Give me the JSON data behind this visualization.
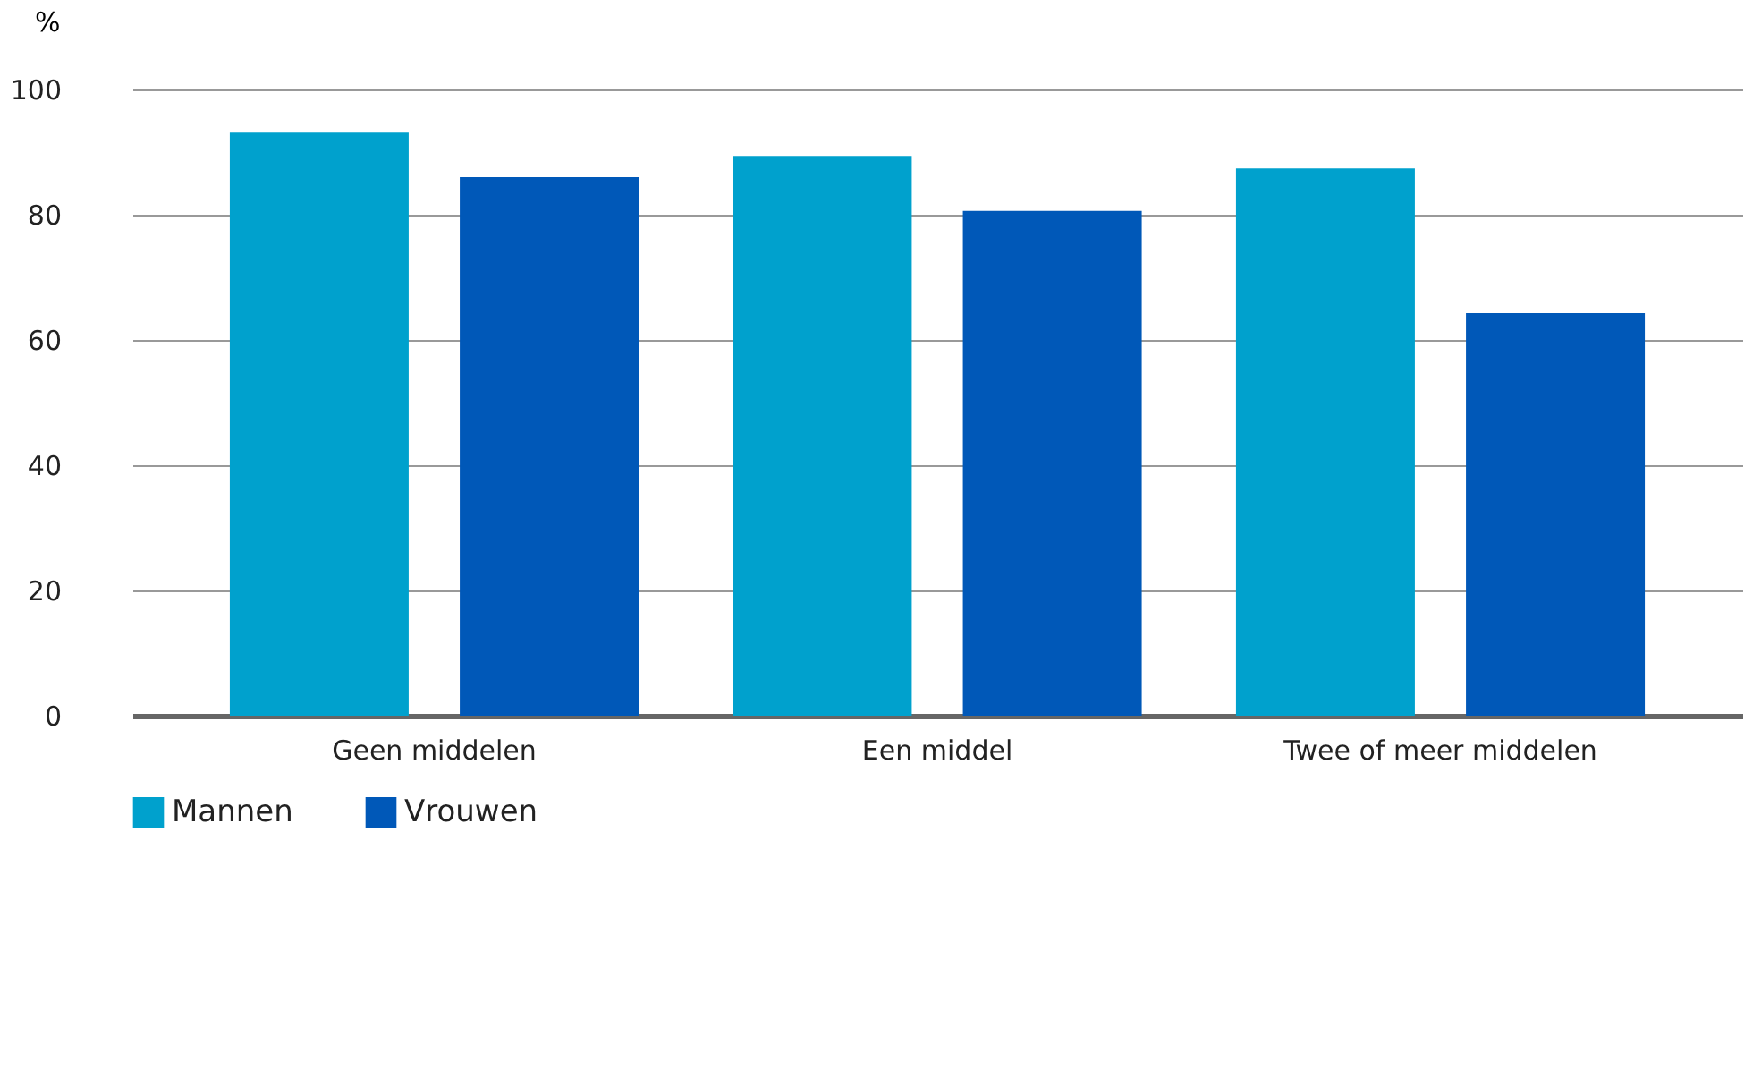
{
  "chart_data": {
    "type": "bar",
    "ylabel": "%",
    "categories": [
      "Geen middelen",
      "Een middel",
      "Twee of meer middelen"
    ],
    "series": [
      {
        "name": "Mannen",
        "color": "#00a1cd",
        "values": [
          93.1,
          89.4,
          87.4
        ]
      },
      {
        "name": "Vrouwen",
        "color": "#0058b8",
        "values": [
          86.0,
          80.6,
          64.3
        ]
      }
    ],
    "ylim": [
      0,
      100
    ],
    "yticks": [
      0,
      20,
      40,
      60,
      80,
      100
    ],
    "grid": "y",
    "legend": "bottom"
  }
}
